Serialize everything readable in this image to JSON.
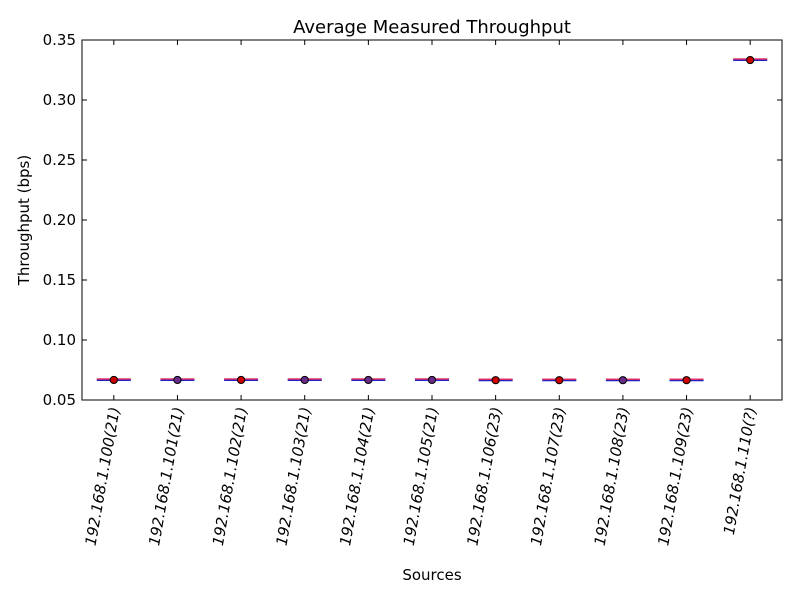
{
  "chart_data": {
    "type": "scatter",
    "title": "Average Measured Throughput",
    "xlabel": "Sources",
    "ylabel": "Throughput (bps)",
    "ylim": [
      0.05,
      0.35
    ],
    "yticks": [
      "0.05",
      "0.10",
      "0.15",
      "0.20",
      "0.25",
      "0.30",
      "0.35"
    ],
    "grid": false,
    "categories": [
      "192.168.1.100(21)",
      "192.168.1.101(21)",
      "192.168.1.102(21)",
      "192.168.1.103(21)",
      "192.168.1.104(21)",
      "192.168.1.105(21)",
      "192.168.1.106(23)",
      "192.168.1.107(23)",
      "192.168.1.108(23)",
      "192.168.1.109(23)",
      "192.168.1.110(?)"
    ],
    "values": [
      0.0667,
      0.0667,
      0.0667,
      0.0667,
      0.0667,
      0.0667,
      0.0665,
      0.0665,
      0.0665,
      0.0665,
      0.3333
    ],
    "colors": {
      "marker_fill_red": "#cc0000",
      "marker_fill_purple": "#6a2a8a",
      "line_blue": "#1f1fbf",
      "line_red": "#e0306a"
    }
  }
}
